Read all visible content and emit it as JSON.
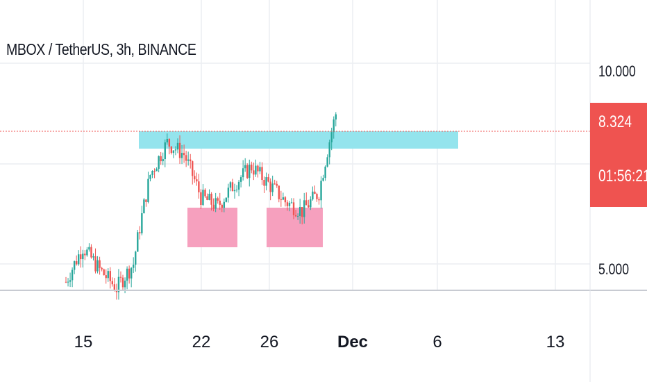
{
  "header": {
    "symbol_title": "MBOX / TetherUS, 3h, BINANCE"
  },
  "price_scale": {
    "labels": [
      "10.000",
      "5.000"
    ],
    "last_price": "8.324",
    "countdown": "01:56:21"
  },
  "time_axis": {
    "labels": [
      "15",
      "22",
      "26",
      "Dec",
      "6",
      "13"
    ]
  },
  "colors": {
    "up": "#26a69a",
    "down": "#ef5350",
    "supply_zone": "#8ee3ec",
    "demand_zone": "#f59bbb",
    "last_price_line": "#ef5350"
  },
  "chart_data": {
    "type": "candlestick",
    "title": "MBOX / TetherUS, 3h, BINANCE",
    "interval": "3h",
    "price_scale": "log",
    "y_ticks": [
      5,
      10
    ],
    "x_ticks": [
      "15",
      "22",
      "26",
      "Dec",
      "6",
      "13"
    ],
    "last_price": 8.324,
    "approx_close_path": [
      {
        "date": "Nov 14",
        "close": 4.7
      },
      {
        "date": "Nov 15",
        "close": 5.3
      },
      {
        "date": "Nov 16",
        "close": 4.9
      },
      {
        "date": "Nov 17",
        "close": 4.6
      },
      {
        "date": "Nov 18",
        "close": 5.0
      },
      {
        "date": "Nov 19",
        "close": 6.8
      },
      {
        "date": "Nov 20",
        "close": 7.6
      },
      {
        "date": "Nov 21",
        "close": 7.3
      },
      {
        "date": "Nov 22",
        "close": 6.3
      },
      {
        "date": "Nov 23",
        "close": 6.1
      },
      {
        "date": "Nov 24",
        "close": 6.6
      },
      {
        "date": "Nov 25",
        "close": 7.0
      },
      {
        "date": "Nov 26",
        "close": 6.6
      },
      {
        "date": "Nov 27",
        "close": 6.2
      },
      {
        "date": "Nov 28",
        "close": 6.0
      },
      {
        "date": "Nov 29",
        "close": 6.4
      },
      {
        "date": "Nov 30",
        "close": 8.4
      }
    ],
    "zones": [
      {
        "kind": "supply",
        "price_range": [
          7.5,
          8.1
        ]
      },
      {
        "kind": "demand",
        "price_range": [
          5.7,
          6.4
        ]
      },
      {
        "kind": "demand",
        "price_range": [
          5.7,
          6.4
        ]
      }
    ]
  }
}
